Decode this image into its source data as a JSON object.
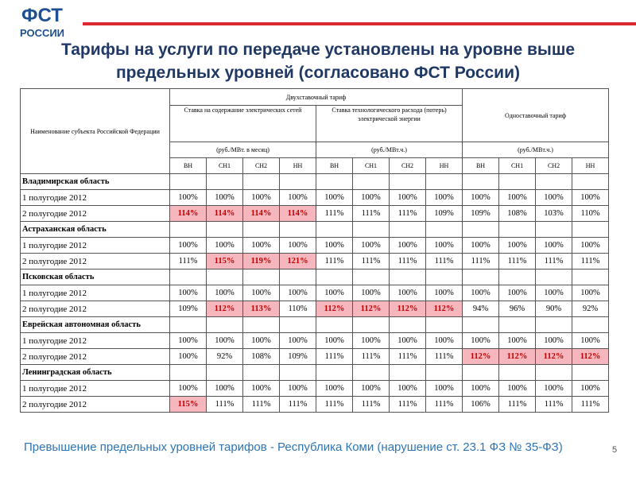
{
  "logo": {
    "line1": "ФСТ",
    "line2": "РОССИИ"
  },
  "title": "Тарифы на услуги по передаче установлены на уровне выше предельных уровней (согласовано ФСТ России)",
  "table": {
    "region_header": "Наименование субъекта Российской Федерации",
    "two_rate": "Двухставочный тариф",
    "one_rate": "Одноставочный тариф",
    "rate_maint": "Ставка на содержание электрических сетей",
    "rate_loss": "Ставка технологического расхода (потерь) электрической энергии",
    "units": [
      "(руб./МВт. в месяц)",
      "(руб./МВт.ч.)",
      "(руб./МВт.ч.)"
    ],
    "levels": [
      "ВН",
      "СН1",
      "СН2",
      "НН",
      "ВН",
      "СН1",
      "СН2",
      "НН",
      "ВН",
      "СН1",
      "СН2",
      "НН"
    ],
    "regions": [
      {
        "name": "Владимирская область",
        "rows": [
          {
            "label": "1 полугодие 2012",
            "cells": [
              "100%",
              "100%",
              "100%",
              "100%",
              "100%",
              "100%",
              "100%",
              "100%",
              "100%",
              "100%",
              "100%",
              "100%"
            ],
            "highlight": []
          },
          {
            "label": "2 полугодие 2012",
            "cells": [
              "114%",
              "114%",
              "114%",
              "114%",
              "111%",
              "111%",
              "111%",
              "109%",
              "109%",
              "108%",
              "103%",
              "110%"
            ],
            "highlight": [
              0,
              1,
              2,
              3
            ]
          }
        ]
      },
      {
        "name": "Астраханская область",
        "rows": [
          {
            "label": "1 полугодие 2012",
            "cells": [
              "100%",
              "100%",
              "100%",
              "100%",
              "100%",
              "100%",
              "100%",
              "100%",
              "100%",
              "100%",
              "100%",
              "100%"
            ],
            "highlight": []
          },
          {
            "label": "2 полугодие 2012",
            "cells": [
              "111%",
              "115%",
              "119%",
              "121%",
              "111%",
              "111%",
              "111%",
              "111%",
              "111%",
              "111%",
              "111%",
              "111%"
            ],
            "highlight": [
              1,
              2,
              3
            ]
          }
        ]
      },
      {
        "name": "Псковская область",
        "rows": [
          {
            "label": "1 полугодие 2012",
            "cells": [
              "100%",
              "100%",
              "100%",
              "100%",
              "100%",
              "100%",
              "100%",
              "100%",
              "100%",
              "100%",
              "100%",
              "100%"
            ],
            "highlight": []
          },
          {
            "label": "2 полугодие 2012",
            "cells": [
              "109%",
              "112%",
              "113%",
              "110%",
              "112%",
              "112%",
              "112%",
              "112%",
              "94%",
              "96%",
              "90%",
              "92%"
            ],
            "highlight": [
              1,
              2,
              4,
              5,
              6,
              7
            ]
          }
        ]
      },
      {
        "name": "Еврейская автономная область",
        "rows": [
          {
            "label": "1 полугодие 2012",
            "cells": [
              "100%",
              "100%",
              "100%",
              "100%",
              "100%",
              "100%",
              "100%",
              "100%",
              "100%",
              "100%",
              "100%",
              "100%"
            ],
            "highlight": []
          },
          {
            "label": "2 полугодие 2012",
            "cells": [
              "100%",
              "92%",
              "108%",
              "109%",
              "111%",
              "111%",
              "111%",
              "111%",
              "112%",
              "112%",
              "112%",
              "112%"
            ],
            "highlight": [
              8,
              9,
              10,
              11
            ]
          }
        ]
      },
      {
        "name": "Ленинградская область",
        "rows": [
          {
            "label": "1 полугодие 2012",
            "cells": [
              "100%",
              "100%",
              "100%",
              "100%",
              "100%",
              "100%",
              "100%",
              "100%",
              "100%",
              "100%",
              "100%",
              "100%"
            ],
            "highlight": []
          },
          {
            "label": "2 полугодие 2012",
            "cells": [
              "115%",
              "111%",
              "111%",
              "111%",
              "111%",
              "111%",
              "111%",
              "111%",
              "106%",
              "111%",
              "111%",
              "111%"
            ],
            "highlight": [
              0
            ]
          }
        ]
      }
    ]
  },
  "footer": "Превышение предельных уровней тарифов  - Республика Коми (нарушение ст. 23.1 ФЗ № 35-ФЗ)",
  "slide_number": "5"
}
